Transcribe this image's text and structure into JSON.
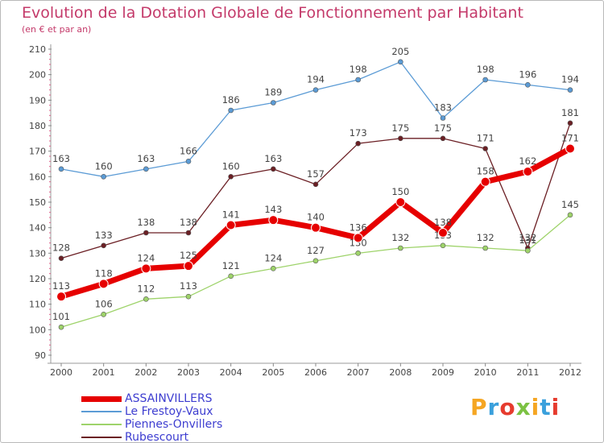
{
  "chart_data": {
    "type": "line",
    "title": "Evolution de la Dotation Globale de Fonctionnement par Habitant",
    "subtitle": "(en € et par an)",
    "xlabel": "",
    "ylabel": "",
    "ylim": [
      90,
      210
    ],
    "ytick_step": 10,
    "grid": false,
    "legend_position": "bottom-left",
    "categories": [
      "2000",
      "2001",
      "2002",
      "2003",
      "2004",
      "2005",
      "2006",
      "2007",
      "2008",
      "2009",
      "2010",
      "2011",
      "2012"
    ],
    "series": [
      {
        "name": "Le Frestoy-Vaux",
        "color": "#5b9bd5",
        "values": [
          163,
          160,
          163,
          166,
          186,
          189,
          194,
          198,
          205,
          183,
          198,
          196,
          194
        ],
        "labels": [
          "163",
          "160",
          "163",
          "166",
          "186",
          "189",
          "194",
          "198",
          "205",
          "183",
          "198",
          "196",
          "194"
        ]
      },
      {
        "name": "Rubescourt",
        "color": "#6b1f24",
        "values": [
          128,
          133,
          138,
          138,
          160,
          163,
          157,
          173,
          175,
          175,
          171,
          132,
          181
        ],
        "labels": [
          "128",
          "133",
          "138",
          "138",
          "160",
          "163",
          "157",
          "173",
          "175",
          "175",
          "171",
          "132",
          "181"
        ]
      },
      {
        "name": "Piennes-Onvillers",
        "color": "#9ed36a",
        "values": [
          101,
          106,
          112,
          113,
          121,
          124,
          127,
          130,
          132,
          133,
          132,
          131,
          145
        ],
        "labels": [
          "101",
          "106",
          "112",
          "113",
          "121",
          "124",
          "127",
          "130",
          "132",
          "133",
          "132",
          "131",
          "145"
        ]
      },
      {
        "name": "ASSAINVILLERS",
        "color": "#e60000",
        "values": [
          113,
          118,
          124,
          125,
          141,
          143,
          140,
          136,
          150,
          138,
          158,
          162,
          171
        ],
        "labels": [
          "113",
          "118",
          "124",
          "125",
          "141",
          "143",
          "140",
          "136",
          "150",
          "138",
          "158",
          "162",
          "171"
        ]
      }
    ],
    "legend_order": [
      "ASSAINVILLERS",
      "Le Frestoy-Vaux",
      "Piennes-Onvillers",
      "Rubescourt"
    ]
  },
  "brand": {
    "letters": [
      "P",
      "r",
      "o",
      "x",
      "i",
      "t",
      "i"
    ],
    "colors": [
      "#f5a623",
      "#3aa0dc",
      "#e63b2e",
      "#7cc243",
      "#f5a623",
      "#3aa0dc",
      "#e63b2e"
    ]
  }
}
